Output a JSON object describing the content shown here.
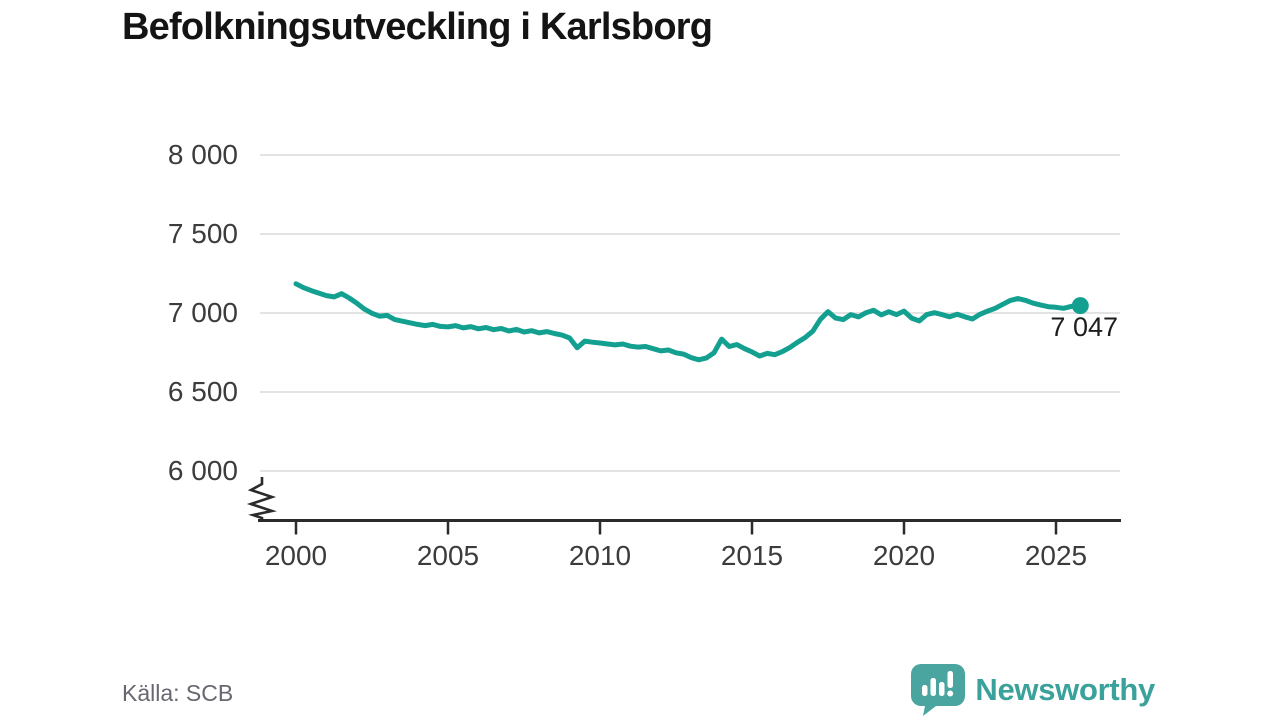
{
  "title": "Befolkningsutveckling i Karlsborg",
  "footer": {
    "source": "Källa: SCB",
    "brand_name": "Newsworthy"
  },
  "colors": {
    "line": "#14a090",
    "grid": "#e3e3e3",
    "axis": "#2b2b2b",
    "tick_text": "#3c3c3c",
    "title_text": "#141414",
    "source_text": "#67676f",
    "brand_teal": "#4aa5a0",
    "brand_wordmark_teal": "#3aa19b",
    "end_label_text": "#1d1d1d"
  },
  "chart_data": {
    "type": "line",
    "title": "Befolkningsutveckling i Karlsborg",
    "xlabel": "",
    "ylabel": "",
    "source": "SCB",
    "grid": "horizontal",
    "legend": "none",
    "axis_break": true,
    "xlim": [
      1998.8,
      2027.1
    ],
    "ylim": [
      6000,
      8000
    ],
    "x_ticks": [
      {
        "value": 2000,
        "label": "2000"
      },
      {
        "value": 2005,
        "label": "2005"
      },
      {
        "value": 2010,
        "label": "2010"
      },
      {
        "value": 2015,
        "label": "2015"
      },
      {
        "value": 2020,
        "label": "2020"
      },
      {
        "value": 2025,
        "label": "2025"
      }
    ],
    "y_ticks": [
      {
        "value": 6000,
        "label": "6 000"
      },
      {
        "value": 6500,
        "label": "6 500"
      },
      {
        "value": 7000,
        "label": "7 000"
      },
      {
        "value": 7500,
        "label": "7 500"
      },
      {
        "value": 8000,
        "label": "8 000"
      }
    ],
    "last_value_label": "7 047",
    "series": [
      {
        "points": [
          [
            2000.0,
            7185
          ],
          [
            2000.25,
            7160
          ],
          [
            2000.5,
            7142
          ],
          [
            2000.75,
            7126
          ],
          [
            2001.0,
            7110
          ],
          [
            2001.25,
            7102
          ],
          [
            2001.5,
            7122
          ],
          [
            2001.75,
            7095
          ],
          [
            2002.0,
            7062
          ],
          [
            2002.25,
            7025
          ],
          [
            2002.5,
            6998
          ],
          [
            2002.75,
            6980
          ],
          [
            2003.0,
            6985
          ],
          [
            2003.25,
            6958
          ],
          [
            2003.5,
            6948
          ],
          [
            2003.75,
            6938
          ],
          [
            2004.0,
            6928
          ],
          [
            2004.25,
            6920
          ],
          [
            2004.5,
            6928
          ],
          [
            2004.75,
            6915
          ],
          [
            2005.0,
            6912
          ],
          [
            2005.25,
            6920
          ],
          [
            2005.5,
            6906
          ],
          [
            2005.75,
            6914
          ],
          [
            2006.0,
            6900
          ],
          [
            2006.25,
            6908
          ],
          [
            2006.5,
            6894
          ],
          [
            2006.75,
            6902
          ],
          [
            2007.0,
            6886
          ],
          [
            2007.25,
            6896
          ],
          [
            2007.5,
            6880
          ],
          [
            2007.75,
            6888
          ],
          [
            2008.0,
            6874
          ],
          [
            2008.25,
            6882
          ],
          [
            2008.5,
            6870
          ],
          [
            2008.75,
            6860
          ],
          [
            2009.0,
            6842
          ],
          [
            2009.25,
            6780
          ],
          [
            2009.5,
            6822
          ],
          [
            2009.75,
            6815
          ],
          [
            2010.0,
            6810
          ],
          [
            2010.25,
            6804
          ],
          [
            2010.5,
            6798
          ],
          [
            2010.75,
            6804
          ],
          [
            2011.0,
            6790
          ],
          [
            2011.25,
            6784
          ],
          [
            2011.5,
            6788
          ],
          [
            2011.75,
            6774
          ],
          [
            2012.0,
            6760
          ],
          [
            2012.25,
            6766
          ],
          [
            2012.5,
            6748
          ],
          [
            2012.75,
            6740
          ],
          [
            2013.0,
            6718
          ],
          [
            2013.25,
            6704
          ],
          [
            2013.5,
            6716
          ],
          [
            2013.75,
            6748
          ],
          [
            2014.0,
            6835
          ],
          [
            2014.25,
            6788
          ],
          [
            2014.5,
            6800
          ],
          [
            2014.75,
            6775
          ],
          [
            2015.0,
            6754
          ],
          [
            2015.25,
            6728
          ],
          [
            2015.5,
            6744
          ],
          [
            2015.75,
            6736
          ],
          [
            2016.0,
            6756
          ],
          [
            2016.25,
            6782
          ],
          [
            2016.5,
            6815
          ],
          [
            2016.75,
            6845
          ],
          [
            2017.0,
            6885
          ],
          [
            2017.25,
            6960
          ],
          [
            2017.5,
            7008
          ],
          [
            2017.75,
            6968
          ],
          [
            2018.0,
            6958
          ],
          [
            2018.25,
            6990
          ],
          [
            2018.5,
            6975
          ],
          [
            2018.75,
            7002
          ],
          [
            2019.0,
            7018
          ],
          [
            2019.25,
            6988
          ],
          [
            2019.5,
            7008
          ],
          [
            2019.75,
            6990
          ],
          [
            2020.0,
            7012
          ],
          [
            2020.25,
            6968
          ],
          [
            2020.5,
            6950
          ],
          [
            2020.75,
            6990
          ],
          [
            2021.0,
            7002
          ],
          [
            2021.25,
            6990
          ],
          [
            2021.5,
            6976
          ],
          [
            2021.75,
            6992
          ],
          [
            2022.0,
            6976
          ],
          [
            2022.25,
            6962
          ],
          [
            2022.5,
            6992
          ],
          [
            2022.75,
            7012
          ],
          [
            2023.0,
            7030
          ],
          [
            2023.25,
            7055
          ],
          [
            2023.5,
            7080
          ],
          [
            2023.75,
            7092
          ],
          [
            2024.0,
            7080
          ],
          [
            2024.25,
            7062
          ],
          [
            2024.5,
            7050
          ],
          [
            2024.75,
            7040
          ],
          [
            2025.0,
            7036
          ],
          [
            2025.25,
            7030
          ],
          [
            2025.5,
            7042
          ],
          [
            2025.8,
            7047
          ]
        ]
      }
    ]
  }
}
